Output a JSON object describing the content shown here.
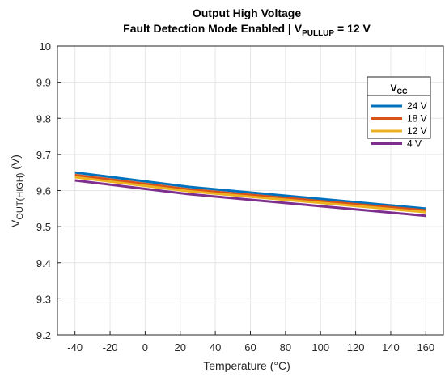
{
  "chart_data": {
    "type": "line",
    "title_line1": "Output High Voltage",
    "title_line2_pre": "Fault Detection Mode Enabled | V",
    "title_line2_sub": "PULLUP",
    "title_line2_post": " = 12 V",
    "xlabel": "Temperature (°C)",
    "ylabel_main": "V",
    "ylabel_sub": "OUT(HIGH)",
    "ylabel_unit": " (V)",
    "xlim": [
      -50,
      170
    ],
    "ylim": [
      9.2,
      10
    ],
    "xticks": [
      "-40",
      "-20",
      "0",
      "20",
      "40",
      "60",
      "80",
      "100",
      "120",
      "140",
      "160"
    ],
    "xtick_values": [
      -40,
      -20,
      0,
      20,
      40,
      60,
      80,
      100,
      120,
      140,
      160
    ],
    "yticks": [
      "9.2",
      "9.3",
      "9.4",
      "9.5",
      "9.6",
      "9.7",
      "9.8",
      "9.9",
      "10"
    ],
    "ytick_values": [
      9.2,
      9.3,
      9.4,
      9.5,
      9.6,
      9.7,
      9.8,
      9.9,
      10
    ],
    "grid": true,
    "legend_title_main": "V",
    "legend_title_sub": "CC",
    "legend_position": "top-right",
    "x": [
      -40,
      25,
      160
    ],
    "series": [
      {
        "name": "24 V",
        "color": "#0072BD",
        "values": [
          9.65,
          9.61,
          9.55
        ]
      },
      {
        "name": "18 V",
        "color": "#D95319",
        "values": [
          9.643,
          9.603,
          9.545
        ]
      },
      {
        "name": "12 V",
        "color": "#EDB120",
        "values": [
          9.637,
          9.598,
          9.54
        ]
      },
      {
        "name": "4 V",
        "color": "#7E2F8E",
        "values": [
          9.628,
          9.59,
          9.53
        ]
      }
    ]
  }
}
